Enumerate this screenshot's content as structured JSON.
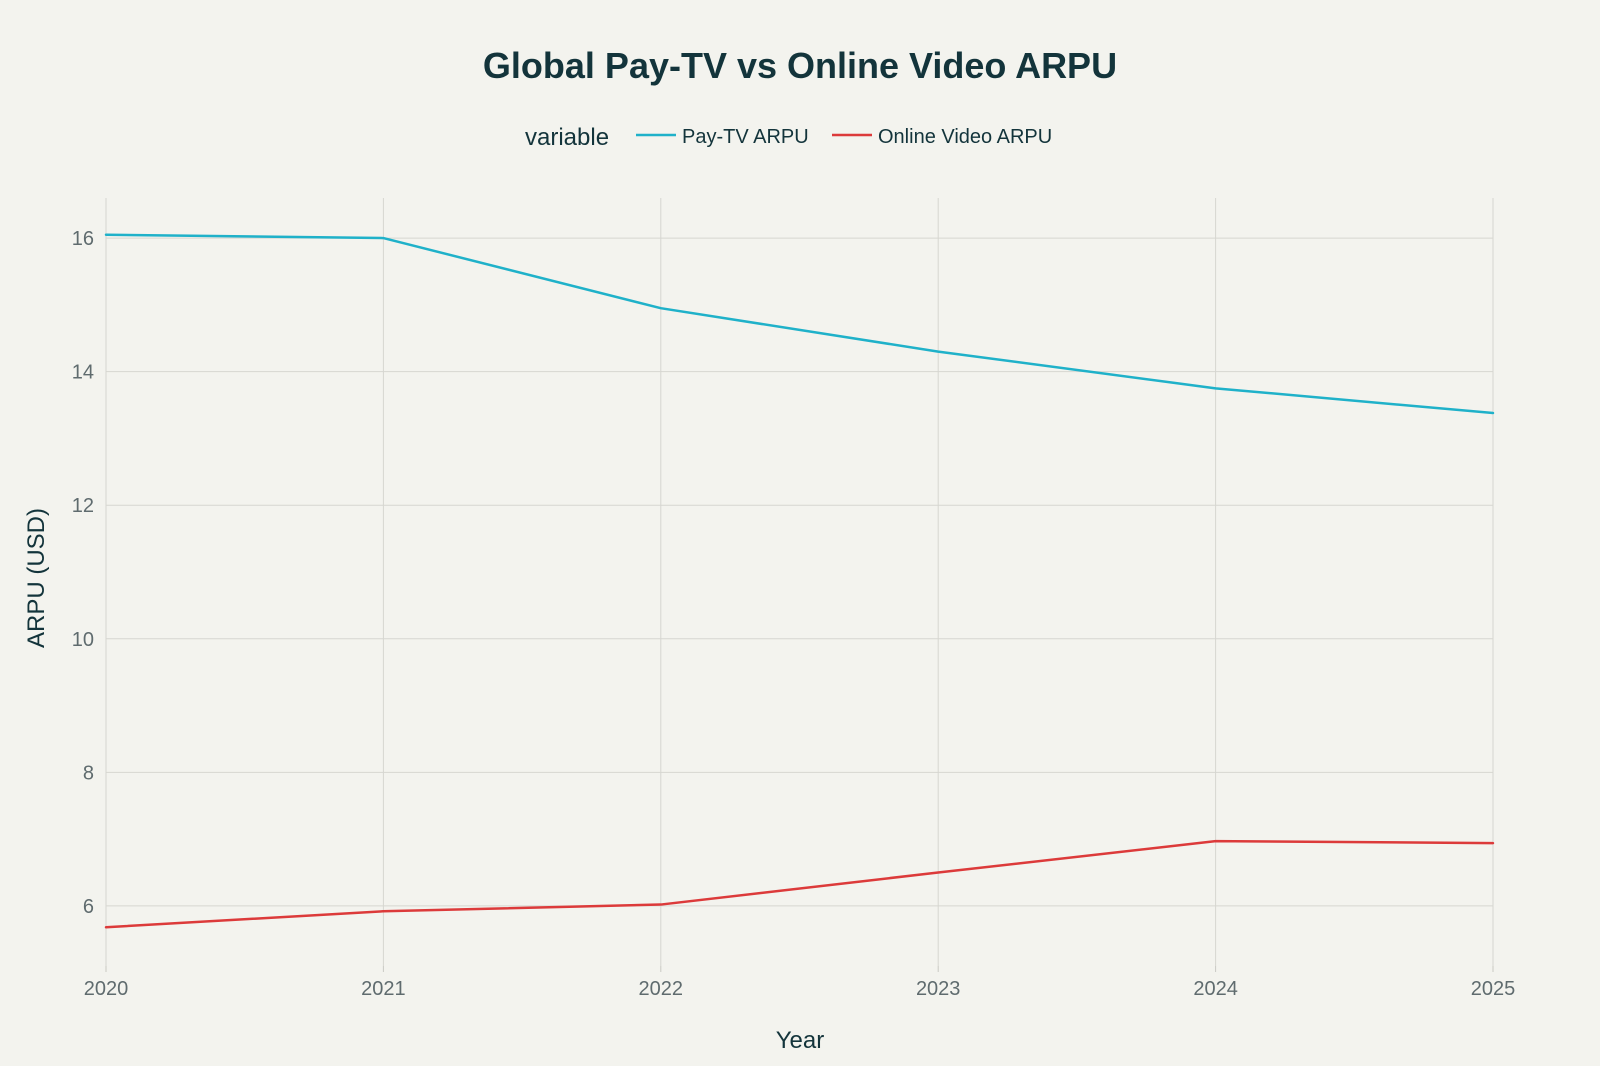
{
  "chart_data": {
    "type": "line",
    "title": "Global Pay-TV vs Online Video ARPU",
    "xlabel": "Year",
    "ylabel": "ARPU (USD)",
    "x": [
      "2020",
      "2021",
      "2022",
      "2023",
      "2024",
      "2025"
    ],
    "xlim": [
      2020,
      2025
    ],
    "ylim": [
      5.1,
      16.6
    ],
    "yticks": [
      "6",
      "8",
      "10",
      "12",
      "14",
      "16"
    ],
    "grid": true,
    "legend": {
      "title": "variable",
      "placement": "top-center"
    },
    "series": [
      {
        "name": "Pay-TV ARPU",
        "color": "#1fb1c9",
        "values": [
          16.05,
          16.0,
          14.95,
          14.3,
          13.75,
          13.38
        ]
      },
      {
        "name": "Online Video ARPU",
        "color": "#dc3a3a",
        "values": [
          5.68,
          5.92,
          6.02,
          6.5,
          6.97,
          6.94
        ]
      }
    ]
  }
}
